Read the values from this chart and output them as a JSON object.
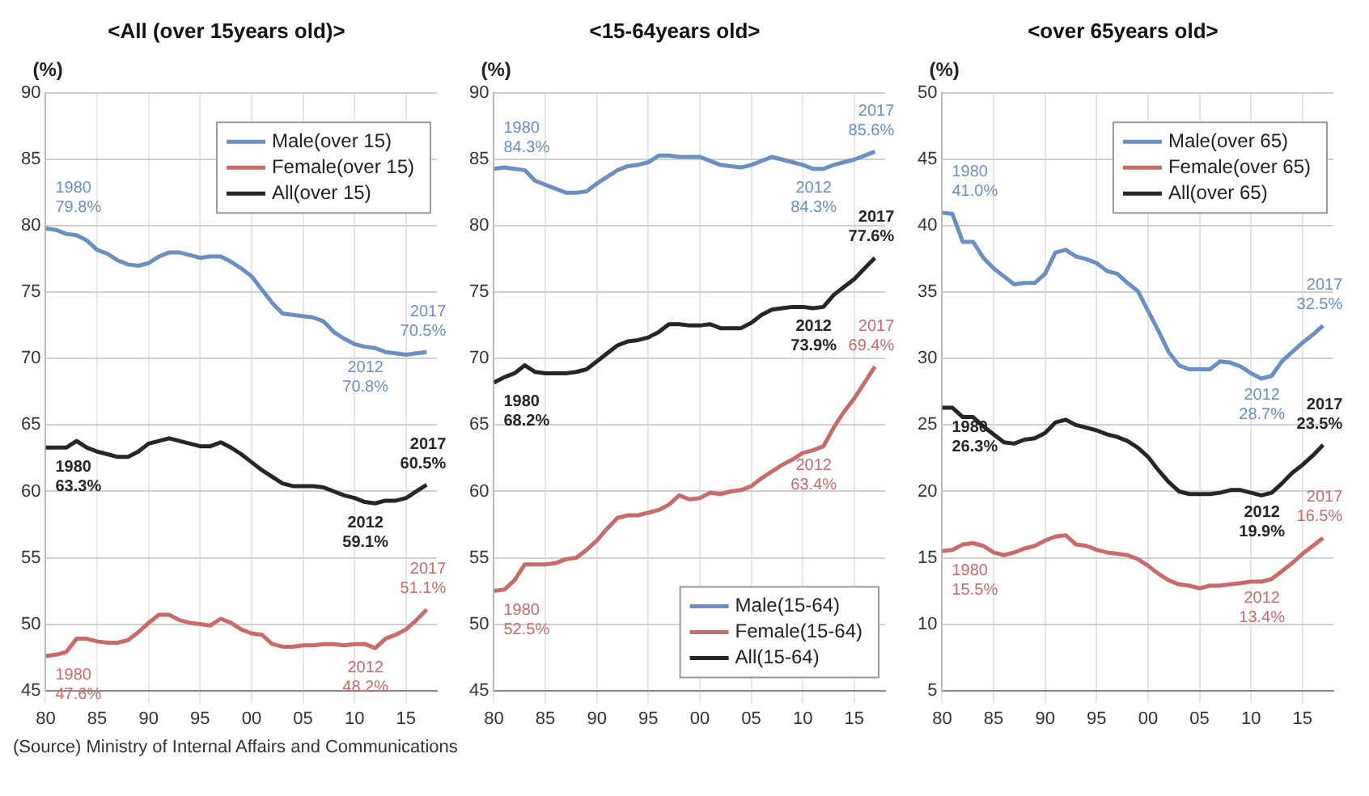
{
  "chart_data": [
    {
      "type": "line",
      "title": "<All (over 15years old)>",
      "ylabel": "(%)",
      "x": [
        1980,
        1981,
        1982,
        1983,
        1984,
        1985,
        1986,
        1987,
        1988,
        1989,
        1990,
        1991,
        1992,
        1993,
        1994,
        1995,
        1996,
        1997,
        1998,
        1999,
        2000,
        2001,
        2002,
        2003,
        2004,
        2005,
        2006,
        2007,
        2008,
        2009,
        2010,
        2011,
        2012,
        2013,
        2014,
        2015,
        2016,
        2017
      ],
      "xlim": [
        1980,
        2018
      ],
      "xticks": [
        {
          "value": 1980,
          "label": "80"
        },
        {
          "value": 1985,
          "label": "85"
        },
        {
          "value": 1990,
          "label": "90"
        },
        {
          "value": 1995,
          "label": "95"
        },
        {
          "value": 2000,
          "label": "00"
        },
        {
          "value": 2005,
          "label": "05"
        },
        {
          "value": 2010,
          "label": "10"
        },
        {
          "value": 2015,
          "label": "15"
        }
      ],
      "ylim": [
        45,
        90
      ],
      "yticks": [
        45,
        50,
        55,
        60,
        65,
        70,
        75,
        80,
        85,
        90
      ],
      "grid": true,
      "legend": "top right",
      "series": [
        {
          "name": "Male(over 15)",
          "color": "#6b8fc2",
          "values": [
            79.8,
            79.7,
            79.4,
            79.3,
            78.9,
            78.2,
            77.9,
            77.4,
            77.1,
            77.0,
            77.2,
            77.7,
            78.0,
            78.0,
            77.8,
            77.6,
            77.7,
            77.7,
            77.3,
            76.8,
            76.2,
            75.2,
            74.2,
            73.4,
            73.3,
            73.2,
            73.1,
            72.8,
            72.0,
            71.5,
            71.1,
            70.9,
            70.8,
            70.5,
            70.4,
            70.3,
            70.4,
            70.5
          ]
        },
        {
          "name": "Female(over 15)",
          "color": "#c96b6b",
          "values": [
            47.6,
            47.7,
            47.9,
            48.9,
            48.9,
            48.7,
            48.6,
            48.6,
            48.8,
            49.4,
            50.1,
            50.7,
            50.7,
            50.3,
            50.1,
            50.0,
            49.9,
            50.4,
            50.1,
            49.6,
            49.3,
            49.2,
            48.5,
            48.3,
            48.3,
            48.4,
            48.4,
            48.5,
            48.5,
            48.4,
            48.5,
            48.5,
            48.2,
            48.9,
            49.2,
            49.6,
            50.3,
            51.1
          ]
        },
        {
          "name": "All(over 15)",
          "color": "#262626",
          "values": [
            63.3,
            63.3,
            63.3,
            63.8,
            63.3,
            63.0,
            62.8,
            62.6,
            62.6,
            63.0,
            63.6,
            63.8,
            64.0,
            63.8,
            63.6,
            63.4,
            63.4,
            63.7,
            63.3,
            62.8,
            62.2,
            61.6,
            61.1,
            60.6,
            60.4,
            60.4,
            60.4,
            60.3,
            60.0,
            59.7,
            59.5,
            59.2,
            59.1,
            59.3,
            59.3,
            59.5,
            60.0,
            60.5
          ]
        }
      ],
      "annotations": [
        {
          "text": "1980\n79.8%",
          "x": 1980,
          "y": 79.8
        },
        {
          "text": "2012\n70.8%",
          "x": 2012,
          "y": 70.8
        },
        {
          "text": "2017\n70.5%",
          "x": 2017,
          "y": 70.5
        },
        {
          "text": "1980\n63.3%",
          "x": 1980,
          "y": 63.3
        },
        {
          "text": "2012\n59.1%",
          "x": 2012,
          "y": 59.1
        },
        {
          "text": "2017\n60.5%",
          "x": 2017,
          "y": 60.5
        },
        {
          "text": "1980\n47.6%",
          "x": 1980,
          "y": 47.6
        },
        {
          "text": "2012\n48.2%",
          "x": 2012,
          "y": 48.2
        },
        {
          "text": "2017\n51.1%",
          "x": 2017,
          "y": 51.1
        },
        "(Source) Ministry of Internal Affairs and Communications"
      ]
    },
    {
      "type": "line",
      "title": "<15-64years old>",
      "ylabel": "(%)",
      "x": [
        1980,
        1981,
        1982,
        1983,
        1984,
        1985,
        1986,
        1987,
        1988,
        1989,
        1990,
        1991,
        1992,
        1993,
        1994,
        1995,
        1996,
        1997,
        1998,
        1999,
        2000,
        2001,
        2002,
        2003,
        2004,
        2005,
        2006,
        2007,
        2008,
        2009,
        2010,
        2011,
        2012,
        2013,
        2014,
        2015,
        2016,
        2017
      ],
      "xlim": [
        1980,
        2018
      ],
      "xticks": [
        {
          "value": 1980,
          "label": "80"
        },
        {
          "value": 1985,
          "label": "85"
        },
        {
          "value": 1990,
          "label": "90"
        },
        {
          "value": 1995,
          "label": "95"
        },
        {
          "value": 2000,
          "label": "00"
        },
        {
          "value": 2005,
          "label": "05"
        },
        {
          "value": 2010,
          "label": "10"
        },
        {
          "value": 2015,
          "label": "15"
        }
      ],
      "ylim": [
        45,
        90
      ],
      "yticks": [
        45,
        50,
        55,
        60,
        65,
        70,
        75,
        80,
        85,
        90
      ],
      "grid": true,
      "legend": "bottom right",
      "series": [
        {
          "name": "Male(15-64)",
          "color": "#6b8fc2",
          "values": [
            84.3,
            84.4,
            84.3,
            84.2,
            83.4,
            83.1,
            82.8,
            82.5,
            82.5,
            82.6,
            83.2,
            83.7,
            84.2,
            84.5,
            84.6,
            84.8,
            85.3,
            85.3,
            85.2,
            85.2,
            85.2,
            84.9,
            84.6,
            84.5,
            84.4,
            84.6,
            84.9,
            85.2,
            85.0,
            84.8,
            84.6,
            84.3,
            84.3,
            84.6,
            84.8,
            85.0,
            85.3,
            85.6
          ]
        },
        {
          "name": "Female(15-64)",
          "color": "#c96b6b",
          "values": [
            52.5,
            52.6,
            53.3,
            54.5,
            54.5,
            54.5,
            54.6,
            54.9,
            55.0,
            55.6,
            56.3,
            57.2,
            58.0,
            58.2,
            58.2,
            58.4,
            58.6,
            59.0,
            59.7,
            59.4,
            59.5,
            59.9,
            59.8,
            60.0,
            60.1,
            60.4,
            61.0,
            61.5,
            62.0,
            62.4,
            62.9,
            63.1,
            63.4,
            64.8,
            66.0,
            67.0,
            68.2,
            69.4
          ]
        },
        {
          "name": "All(15-64)",
          "color": "#262626",
          "values": [
            68.2,
            68.6,
            68.9,
            69.5,
            69.0,
            68.9,
            68.9,
            68.9,
            69.0,
            69.2,
            69.8,
            70.4,
            71.0,
            71.3,
            71.4,
            71.6,
            72.0,
            72.6,
            72.6,
            72.5,
            72.5,
            72.6,
            72.3,
            72.3,
            72.3,
            72.7,
            73.3,
            73.7,
            73.8,
            73.9,
            73.9,
            73.8,
            73.9,
            74.8,
            75.4,
            76.0,
            76.8,
            77.6
          ]
        }
      ],
      "annotations": [
        {
          "text": "1980\n84.3%",
          "x": 1980,
          "y": 84.3
        },
        {
          "text": "2012\n84.3%",
          "x": 2012,
          "y": 84.3
        },
        {
          "text": "2017\n85.6%",
          "x": 2017,
          "y": 85.6
        },
        {
          "text": "1980\n68.2%",
          "x": 1980,
          "y": 68.2
        },
        {
          "text": "2012\n73.9%",
          "x": 2012,
          "y": 73.9
        },
        {
          "text": "2017\n77.6%",
          "x": 2017,
          "y": 77.6
        },
        {
          "text": "1980\n52.5%",
          "x": 1980,
          "y": 52.5
        },
        {
          "text": "2012\n63.4%",
          "x": 2012,
          "y": 63.4
        },
        {
          "text": "2017\n69.4%",
          "x": 2017,
          "y": 69.4
        }
      ]
    },
    {
      "type": "line",
      "title": "<over 65years old>",
      "ylabel": "(%)",
      "x": [
        1980,
        1981,
        1982,
        1983,
        1984,
        1985,
        1986,
        1987,
        1988,
        1989,
        1990,
        1991,
        1992,
        1993,
        1994,
        1995,
        1996,
        1997,
        1998,
        1999,
        2000,
        2001,
        2002,
        2003,
        2004,
        2005,
        2006,
        2007,
        2008,
        2009,
        2010,
        2011,
        2012,
        2013,
        2014,
        2015,
        2016,
        2017
      ],
      "xlim": [
        1980,
        2018
      ],
      "xticks": [
        {
          "value": 1980,
          "label": "80"
        },
        {
          "value": 1985,
          "label": "85"
        },
        {
          "value": 1990,
          "label": "90"
        },
        {
          "value": 1995,
          "label": "95"
        },
        {
          "value": 2000,
          "label": "00"
        },
        {
          "value": 2005,
          "label": "05"
        },
        {
          "value": 2010,
          "label": "10"
        },
        {
          "value": 2015,
          "label": "15"
        }
      ],
      "ylim": [
        5,
        50
      ],
      "yticks": [
        5,
        10,
        15,
        20,
        25,
        30,
        35,
        40,
        45,
        50
      ],
      "grid": true,
      "legend": "top right",
      "series": [
        {
          "name": "Male(over 65)",
          "color": "#6b8fc2",
          "values": [
            41.0,
            40.9,
            38.8,
            38.8,
            37.6,
            36.8,
            36.2,
            35.6,
            35.7,
            35.7,
            36.4,
            38.0,
            38.2,
            37.7,
            37.5,
            37.2,
            36.6,
            36.4,
            35.7,
            35.1,
            33.6,
            32.1,
            30.5,
            29.5,
            29.2,
            29.2,
            29.2,
            29.8,
            29.7,
            29.4,
            28.9,
            28.5,
            28.7,
            29.8,
            30.5,
            31.2,
            31.8,
            32.5
          ]
        },
        {
          "name": "Female(over 65)",
          "color": "#c96b6b",
          "values": [
            15.5,
            15.6,
            16.0,
            16.1,
            15.9,
            15.4,
            15.2,
            15.4,
            15.7,
            15.9,
            16.3,
            16.6,
            16.7,
            16.0,
            15.9,
            15.6,
            15.4,
            15.3,
            15.2,
            14.9,
            14.4,
            13.8,
            13.3,
            13.0,
            12.9,
            12.7,
            12.9,
            12.9,
            13.0,
            13.1,
            13.2,
            13.2,
            13.4,
            14.0,
            14.6,
            15.3,
            15.9,
            16.5
          ]
        },
        {
          "name": "All(over 65)",
          "color": "#262626",
          "values": [
            26.3,
            26.3,
            25.6,
            25.6,
            24.9,
            24.3,
            23.7,
            23.6,
            23.9,
            24.0,
            24.4,
            25.2,
            25.4,
            25.0,
            24.8,
            24.6,
            24.3,
            24.1,
            23.8,
            23.3,
            22.6,
            21.6,
            20.7,
            20.0,
            19.8,
            19.8,
            19.8,
            19.9,
            20.1,
            20.1,
            19.9,
            19.7,
            19.9,
            20.6,
            21.4,
            22.0,
            22.7,
            23.5
          ]
        }
      ],
      "annotations": [
        {
          "text": "1980\n41.0%",
          "x": 1980,
          "y": 41.0
        },
        {
          "text": "2012\n28.7%",
          "x": 2012,
          "y": 28.7
        },
        {
          "text": "2017\n32.5%",
          "x": 2017,
          "y": 32.5
        },
        {
          "text": "1980\n26.3%",
          "x": 1980,
          "y": 26.3
        },
        {
          "text": "2012\n19.9%",
          "x": 2012,
          "y": 19.9
        },
        {
          "text": "2017\n23.5%",
          "x": 2017,
          "y": 23.5
        },
        {
          "text": "1980\n15.5%",
          "x": 1980,
          "y": 15.5
        },
        {
          "text": "2012\n13.4%",
          "x": 2012,
          "y": 13.4
        },
        {
          "text": "2017\n16.5%",
          "x": 2017,
          "y": 16.5
        }
      ]
    }
  ]
}
